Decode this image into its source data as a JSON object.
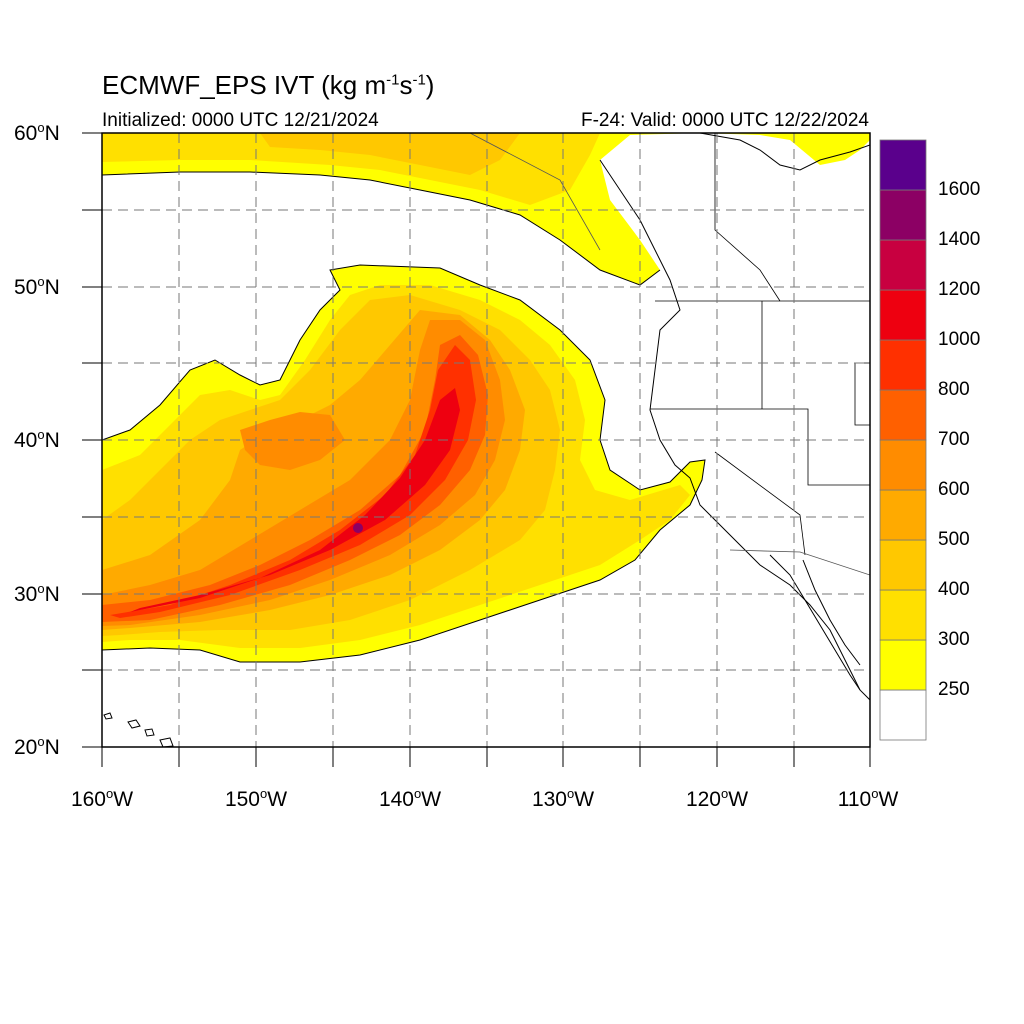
{
  "header": {
    "title_prefix": "ECMWF_EPS IVT (kg m",
    "title_sup1": "-1",
    "title_mid": "s",
    "title_sup2": "-1",
    "title_suffix": ")",
    "initialized": "Initialized: 0000 UTC 12/21/2024",
    "valid": "F-24: Valid: 0000 UTC 12/22/2024"
  },
  "map": {
    "lon_range": [
      -160,
      -110
    ],
    "lat_range": [
      20,
      60
    ],
    "grid": "dashed",
    "lat_labels": [
      {
        "num": "60",
        "hemi": "N"
      },
      {
        "num": "50",
        "hemi": "N"
      },
      {
        "num": "40",
        "hemi": "N"
      },
      {
        "num": "30",
        "hemi": "N"
      },
      {
        "num": "20",
        "hemi": "N"
      }
    ],
    "lon_labels": [
      {
        "num": "160",
        "hemi": "W"
      },
      {
        "num": "150",
        "hemi": "W"
      },
      {
        "num": "140",
        "hemi": "W"
      },
      {
        "num": "130",
        "hemi": "W"
      },
      {
        "num": "120",
        "hemi": "W"
      },
      {
        "num": "110",
        "hemi": "W"
      }
    ],
    "degree_symbol": "o"
  },
  "colorbar": {
    "labels": [
      "250",
      "300",
      "400",
      "500",
      "600",
      "700",
      "800",
      "1000",
      "1200",
      "1400",
      "1600"
    ],
    "colors": [
      "#ffffff",
      "#ffff00",
      "#ffe000",
      "#ffc800",
      "#ffaa00",
      "#ff8c00",
      "#ff6000",
      "#ff3000",
      "#ee0010",
      "#c80040",
      "#8c0064",
      "#5a008c"
    ]
  }
}
